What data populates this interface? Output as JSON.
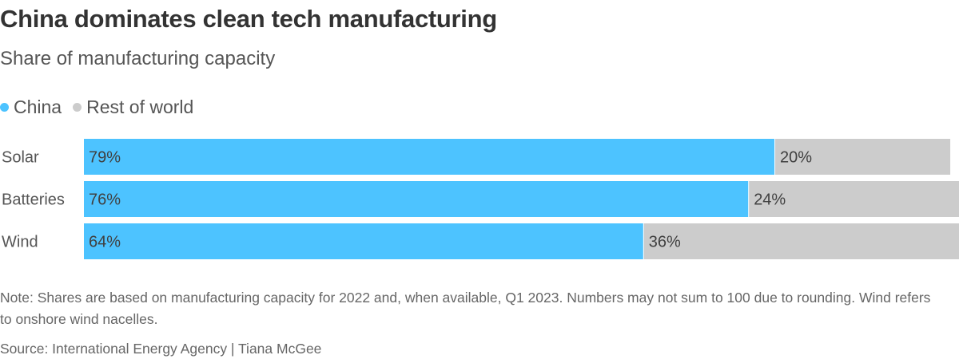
{
  "chart_data": {
    "type": "bar",
    "orientation": "horizontal",
    "stacked": true,
    "title": "China dominates clean tech manufacturing",
    "subtitle": "Share of manufacturing capacity",
    "categories": [
      "Solar",
      "Batteries",
      "Wind"
    ],
    "series": [
      {
        "name": "China",
        "color": "#4dc3ff",
        "values": [
          79,
          76,
          64
        ],
        "labels": [
          "79%",
          "76%",
          "64%"
        ]
      },
      {
        "name": "Rest of world",
        "color": "#cccccc",
        "values": [
          20,
          24,
          36
        ],
        "labels": [
          "20%",
          "24%",
          "36%"
        ]
      }
    ],
    "xlim": [
      0,
      100
    ],
    "unit": "%",
    "legend_position": "top-left",
    "note": "Note: Shares are based on manufacturing capacity for 2022 and, when available, Q1 2023. Numbers may not sum to 100 due to rounding. Wind refers to onshore wind nacelles.",
    "source": "Source: International Energy Agency | Tiana McGee"
  }
}
